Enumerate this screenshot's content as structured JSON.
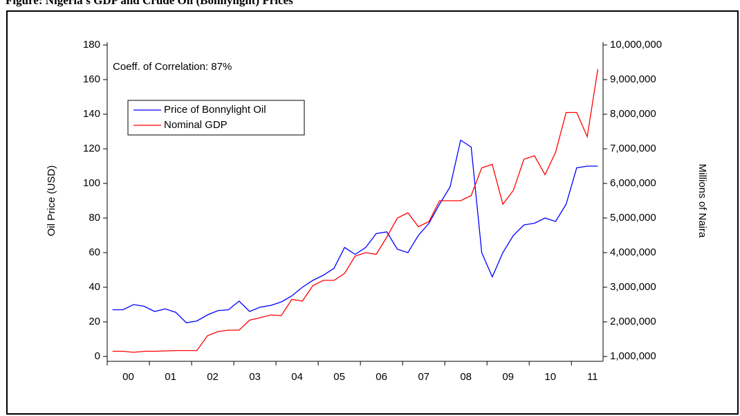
{
  "chart_data": {
    "type": "line",
    "title": "Figure: Nigeria's GDP and Crude Oil (Bonnylight) Prices",
    "annotation": "Coeff. of Correlation: 87%",
    "y_label": "Oil Price (USD)",
    "y2_label": "Millions of Naira",
    "x": [
      2000.125,
      2000.375,
      2000.625,
      2000.875,
      2001.125,
      2001.375,
      2001.625,
      2001.875,
      2002.125,
      2002.375,
      2002.625,
      2002.875,
      2003.125,
      2003.375,
      2003.625,
      2003.875,
      2004.125,
      2004.375,
      2004.625,
      2004.875,
      2005.125,
      2005.375,
      2005.625,
      2005.875,
      2006.125,
      2006.375,
      2006.625,
      2006.875,
      2007.125,
      2007.375,
      2007.625,
      2007.875,
      2008.125,
      2008.375,
      2008.625,
      2008.875,
      2009.125,
      2009.375,
      2009.625,
      2009.875,
      2010.125,
      2010.375,
      2010.625,
      2010.875,
      2011.125,
      2011.375,
      2011.625
    ],
    "xlim": [
      2000,
      2011.75
    ],
    "xticks": [
      {
        "value": 2000.5,
        "label": "00"
      },
      {
        "value": 2001.5,
        "label": "01"
      },
      {
        "value": 2002.5,
        "label": "02"
      },
      {
        "value": 2003.5,
        "label": "03"
      },
      {
        "value": 2004.5,
        "label": "04"
      },
      {
        "value": 2005.5,
        "label": "05"
      },
      {
        "value": 2006.5,
        "label": "06"
      },
      {
        "value": 2007.5,
        "label": "07"
      },
      {
        "value": 2008.5,
        "label": "08"
      },
      {
        "value": 2009.5,
        "label": "09"
      },
      {
        "value": 2010.5,
        "label": "10"
      },
      {
        "value": 2011.5,
        "label": "11"
      }
    ],
    "xminorticks": [
      2000,
      2001,
      2002,
      2003,
      2004,
      2005,
      2006,
      2007,
      2008,
      2009,
      2010,
      2011
    ],
    "ylim": [
      0,
      180
    ],
    "yticks": [
      0,
      20,
      40,
      60,
      80,
      100,
      120,
      140,
      160,
      180
    ],
    "y2lim": [
      1000000,
      10000000
    ],
    "y2ticks": [
      {
        "value": 1000000,
        "label": "1,000,000"
      },
      {
        "value": 2000000,
        "label": "2,000,000"
      },
      {
        "value": 3000000,
        "label": "3,000,000"
      },
      {
        "value": 4000000,
        "label": "4,000,000"
      },
      {
        "value": 5000000,
        "label": "5,000,000"
      },
      {
        "value": 6000000,
        "label": "6,000,000"
      },
      {
        "value": 7000000,
        "label": "7,000,000"
      },
      {
        "value": 8000000,
        "label": "8,000,000"
      },
      {
        "value": 9000000,
        "label": "9,000,000"
      },
      {
        "value": 10000000,
        "label": "10,000,000"
      }
    ],
    "legend": "upper left",
    "series": [
      {
        "name": "Price of Bonnylight Oil",
        "color": "#0000ff",
        "values": [
          27,
          27,
          30,
          29,
          26,
          27.5,
          25.5,
          19.5,
          20.5,
          24,
          26.5,
          27,
          32,
          26,
          28.5,
          29.5,
          31.5,
          35,
          40,
          44,
          47,
          51,
          63,
          59,
          63,
          71,
          72,
          62,
          60,
          70,
          77,
          88,
          98,
          125,
          121,
          60,
          46,
          60,
          70,
          76,
          77,
          80,
          78,
          88,
          109,
          110,
          110
        ]
      },
      {
        "name": "Nominal GDP",
        "color": "#ff0000",
        "axis": "y2",
        "values": [
          1150000,
          1150000,
          1120000,
          1150000,
          1150000,
          1160000,
          1170000,
          1170000,
          1170000,
          1600000,
          1720000,
          1760000,
          1760000,
          2050000,
          2120000,
          2200000,
          2180000,
          2650000,
          2600000,
          3050000,
          3200000,
          3200000,
          3400000,
          3900000,
          4000000,
          3950000,
          4450000,
          5000000,
          5150000,
          4750000,
          4900000,
          5500000,
          5500000,
          5500000,
          5650000,
          6450000,
          6550000,
          5400000,
          5800000,
          6700000,
          6800000,
          6250000,
          6900000,
          8050000,
          8050000,
          7350000,
          9300000
        ]
      }
    ]
  }
}
